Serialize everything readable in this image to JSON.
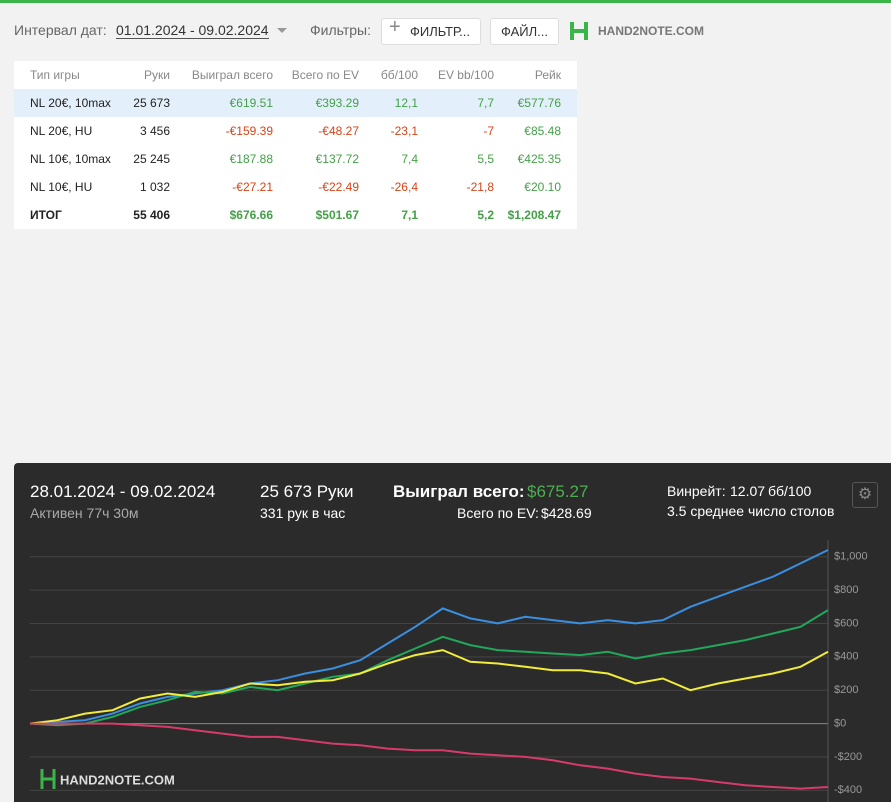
{
  "header": {
    "date_label": "Интервал дат:",
    "date_range": "01.01.2024 - 09.02.2024",
    "filters_label": "Фильтры:",
    "filter_button": "ФИЛЬТР...",
    "file_button": "ФАЙЛ...",
    "logo": "HAND2NOTE.COM"
  },
  "table": {
    "columns": [
      "Тип игры",
      "Руки",
      "Выиграл всего",
      "Всего по EV",
      "бб/100",
      "EV bb/100",
      "Рейк"
    ],
    "rows": [
      [
        "NL 20€, 10max",
        "25 673",
        "€619.51",
        "€393.29",
        "12,1",
        "7,7",
        "€577.76"
      ],
      [
        "NL 20€, HU",
        "3 456",
        "-€159.39",
        "-€48.27",
        "-23,1",
        "-7",
        "€85.48"
      ],
      [
        "NL 10€, 10max",
        "25 245",
        "€187.88",
        "€137.72",
        "7,4",
        "5,5",
        "€425.35"
      ],
      [
        "NL 10€, HU",
        "1 032",
        "-€27.21",
        "-€22.49",
        "-26,4",
        "-21,8",
        "€20.10"
      ]
    ],
    "total": [
      "ИТОГ",
      "55 406",
      "$676.66",
      "$501.67",
      "7,1",
      "5,2",
      "$1,208.47"
    ]
  },
  "graph": {
    "date_range": "28.01.2024 - 09.02.2024",
    "active": "Активен 77ч 30м",
    "hands": "25 673 Руки",
    "hands_per_hour": "331 рук в час",
    "won_label": "Выиграл всего:",
    "won_value": "$675.27",
    "ev_label": "Всего по EV:",
    "ev_value": "$428.69",
    "winrate_label": "Винрейт:",
    "winrate_value": "12.07",
    "winrate_unit": "бб/100",
    "tables": "3.5 среднее число столов",
    "logo": "HAND2NOTE.COM",
    "ylim": [
      -470,
      1100
    ],
    "yticks": [
      {
        "value": -400,
        "label": "-$400"
      },
      {
        "value": -200,
        "label": "-$200"
      },
      {
        "value": 0,
        "label": "$0"
      },
      {
        "value": 200,
        "label": "$200"
      },
      {
        "value": 400,
        "label": "$400"
      },
      {
        "value": 600,
        "label": "$600"
      },
      {
        "value": 800,
        "label": "$800"
      },
      {
        "value": 1000,
        "label": "$1,000"
      }
    ],
    "series": [
      {
        "color": "#3a8fe0",
        "values": [
          0,
          10,
          20,
          60,
          120,
          160,
          180,
          200,
          240,
          260,
          300,
          330,
          380,
          480,
          580,
          690,
          630,
          600,
          640,
          620,
          600,
          620,
          600,
          620,
          700,
          760,
          820,
          880,
          960,
          1040
        ]
      },
      {
        "color": "#21a85a",
        "values": [
          0,
          -10,
          0,
          40,
          100,
          140,
          190,
          180,
          220,
          200,
          240,
          280,
          300,
          380,
          450,
          520,
          470,
          440,
          430,
          420,
          410,
          430,
          390,
          420,
          440,
          470,
          500,
          540,
          580,
          680
        ]
      },
      {
        "color": "#f2ec3a",
        "values": [
          0,
          20,
          60,
          80,
          150,
          180,
          160,
          190,
          240,
          230,
          250,
          260,
          300,
          360,
          410,
          440,
          370,
          360,
          340,
          320,
          320,
          300,
          240,
          270,
          200,
          240,
          270,
          300,
          340,
          430
        ]
      },
      {
        "color": "#d63b6a",
        "values": [
          0,
          0,
          0,
          0,
          -10,
          -20,
          -40,
          -60,
          -80,
          -80,
          -100,
          -120,
          -130,
          -150,
          -160,
          -160,
          -180,
          -190,
          -200,
          -220,
          -250,
          -270,
          -300,
          -320,
          -330,
          -350,
          -370,
          -380,
          -390,
          -380
        ]
      }
    ]
  }
}
